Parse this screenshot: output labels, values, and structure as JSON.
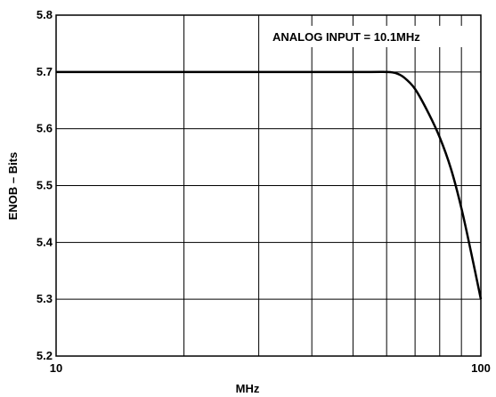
{
  "chart_data": {
    "type": "line",
    "title": "",
    "xlabel": "MHz",
    "ylabel": "ENOB – Bits",
    "x_scale": "log",
    "xlim": [
      10,
      100
    ],
    "ylim": [
      5.2,
      5.8
    ],
    "x_tick_labels": [
      "10",
      "100"
    ],
    "y_ticks": [
      5.2,
      5.3,
      5.4,
      5.5,
      5.6,
      5.7,
      5.8
    ],
    "y_tick_labels": [
      "5.2",
      "5.3",
      "5.4",
      "5.5",
      "5.6",
      "5.7",
      "5.8"
    ],
    "grid": true,
    "annotation": "ANALOG INPUT = 10.1MHz",
    "series": [
      {
        "color": "#000000",
        "x": [
          10,
          20,
          40,
          55,
          60,
          63,
          66,
          70,
          75,
          80,
          85,
          90,
          95,
          100
        ],
        "y": [
          5.7,
          5.7,
          5.7,
          5.7,
          5.7,
          5.698,
          5.69,
          5.67,
          5.63,
          5.585,
          5.53,
          5.46,
          5.38,
          5.3
        ]
      }
    ]
  }
}
